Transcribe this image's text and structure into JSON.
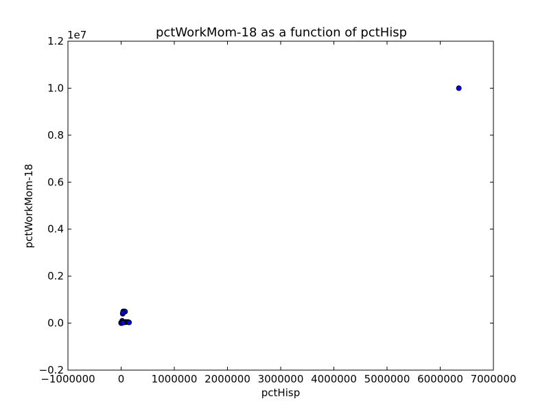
{
  "chart_data": {
    "type": "scatter",
    "title": "pctWorkMom-18 as a function of pctHisp",
    "xlabel": "pctHisp",
    "ylabel": "pctWorkMom-18",
    "y_offset_label": "1e7",
    "xlim": [
      -1000000,
      7000000
    ],
    "ylim": [
      -0.2,
      1.2
    ],
    "x_ticks": [
      -1000000,
      0,
      1000000,
      2000000,
      3000000,
      4000000,
      5000000,
      6000000,
      7000000
    ],
    "x_tick_labels": [
      "−1000000",
      "0",
      "1000000",
      "2000000",
      "3000000",
      "4000000",
      "5000000",
      "6000000",
      "7000000"
    ],
    "y_ticks": [
      -0.2,
      0.0,
      0.2,
      0.4,
      0.6,
      0.8,
      1.0,
      1.2
    ],
    "y_tick_labels": [
      "−0.2",
      "0.0",
      "0.2",
      "0.4",
      "0.6",
      "0.8",
      "1.0",
      "1.2"
    ],
    "marker_color": "#0000ff",
    "marker_edge": "#000000",
    "grid": false,
    "points": [
      {
        "x": 6350000,
        "y": 1.0
      },
      {
        "x": 40000,
        "y": 0.05
      },
      {
        "x": 60000,
        "y": 0.05
      },
      {
        "x": 30000,
        "y": 0.04
      },
      {
        "x": 10000,
        "y": 0.0
      },
      {
        "x": 0,
        "y": 0.0
      },
      {
        "x": 0,
        "y": 0.002
      },
      {
        "x": 20000,
        "y": 0.01
      },
      {
        "x": 50000,
        "y": 0.003
      },
      {
        "x": 70000,
        "y": 0.004
      },
      {
        "x": 80000,
        "y": 0.005
      },
      {
        "x": 90000,
        "y": 0.004
      },
      {
        "x": 100000,
        "y": 0.005
      },
      {
        "x": 120000,
        "y": 0.005
      },
      {
        "x": 140000,
        "y": 0.004
      },
      {
        "x": 150000,
        "y": 0.003
      },
      {
        "x": 5000,
        "y": 0.001
      },
      {
        "x": 25000,
        "y": 0.005
      },
      {
        "x": 35000,
        "y": 0.002
      },
      {
        "x": 45000,
        "y": 0.047
      },
      {
        "x": 55000,
        "y": 0.048
      },
      {
        "x": 65000,
        "y": 0.05
      },
      {
        "x": 75000,
        "y": 0.049
      },
      {
        "x": 35000,
        "y": 0.045
      }
    ]
  }
}
